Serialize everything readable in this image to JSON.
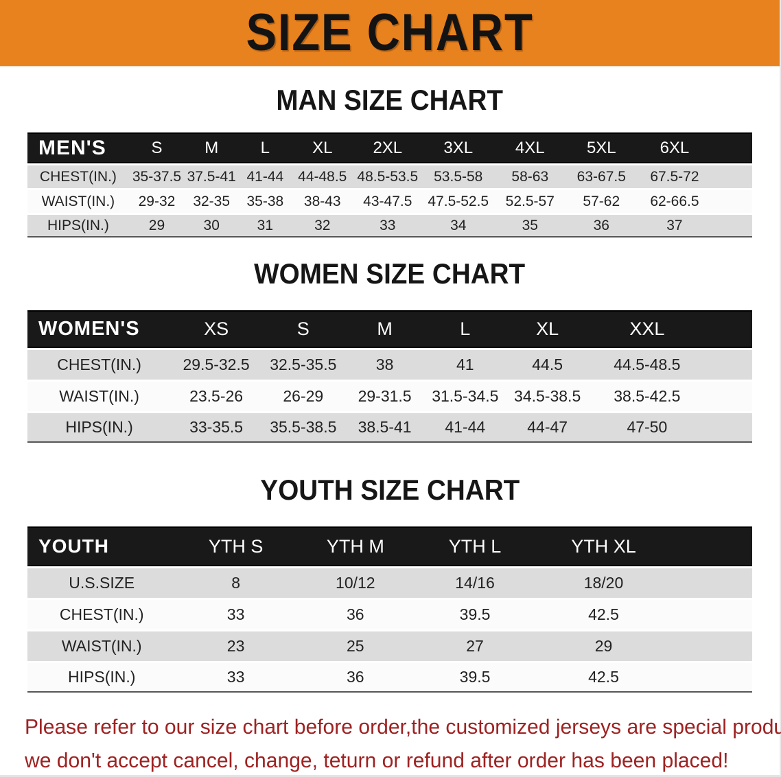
{
  "banner": {
    "title": "SIZE CHART",
    "bg_color": "#E8821E",
    "text_color": "#131313"
  },
  "tables": [
    {
      "heading": "MAN SIZE CHART",
      "label_header": "MEN'S",
      "columns": [
        "S",
        "M",
        "L",
        "XL",
        "2XL",
        "3XL",
        "4XL",
        "5XL",
        "6XL"
      ],
      "rows": [
        {
          "label": "CHEST(IN.)",
          "values": [
            "35-37.5",
            "37.5-41",
            "41-44",
            "44-48.5",
            "48.5-53.5",
            "53.5-58",
            "58-63",
            "63-67.5",
            "67.5-72"
          ]
        },
        {
          "label": "WAIST(IN.)",
          "values": [
            "29-32",
            "32-35",
            "35-38",
            "38-43",
            "43-47.5",
            "47.5-52.5",
            "52.5-57",
            "57-62",
            "62-66.5"
          ]
        },
        {
          "label": "HIPS(IN.)",
          "values": [
            "29",
            "30",
            "31",
            "32",
            "33",
            "34",
            "35",
            "36",
            "37"
          ]
        }
      ]
    },
    {
      "heading": "WOMEN SIZE CHART",
      "label_header": "WOMEN'S",
      "columns": [
        "XS",
        "S",
        "M",
        "L",
        "XL",
        "XXL"
      ],
      "rows": [
        {
          "label": "CHEST(IN.)",
          "values": [
            "29.5-32.5",
            "32.5-35.5",
            "38",
            "41",
            "44.5",
            "44.5-48.5"
          ]
        },
        {
          "label": "WAIST(IN.)",
          "values": [
            "23.5-26",
            "26-29",
            "29-31.5",
            "31.5-34.5",
            "34.5-38.5",
            "38.5-42.5"
          ]
        },
        {
          "label": "HIPS(IN.)",
          "values": [
            "33-35.5",
            "35.5-38.5",
            "38.5-41",
            "41-44",
            "44-47",
            "47-50"
          ]
        }
      ]
    },
    {
      "heading": "YOUTH SIZE CHART",
      "label_header": "YOUTH",
      "columns": [
        "YTH S",
        "YTH M",
        "YTH L",
        "YTH XL"
      ],
      "rows": [
        {
          "label": "U.S.SIZE",
          "values": [
            "8",
            "10/12",
            "14/16",
            "18/20"
          ]
        },
        {
          "label": "CHEST(IN.)",
          "values": [
            "33",
            "36",
            "39.5",
            "42.5"
          ]
        },
        {
          "label": "WAIST(IN.)",
          "values": [
            "23",
            "25",
            "27",
            "29"
          ]
        },
        {
          "label": "HIPS(IN.)",
          "values": [
            "33",
            "36",
            "39.5",
            "42.5"
          ]
        }
      ]
    }
  ],
  "disclaimer": {
    "line1": "Please refer to our size chart before order,the customized jerseys are special products,",
    "line2": "we don't accept cancel, change, teturn or refund after order has been placed!",
    "color": "#9e2222"
  },
  "colors": {
    "header_bg": "#191919",
    "row_gray": "#dcdcdc",
    "row_white": "#fbfbfb"
  }
}
